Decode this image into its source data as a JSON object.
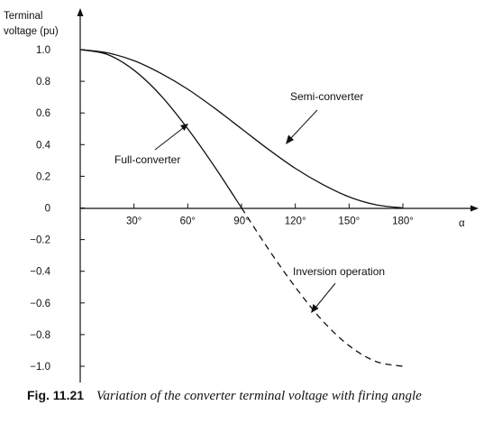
{
  "chart_data": {
    "type": "line",
    "ylabel_lines": [
      "Terminal",
      "voltage (pu)"
    ],
    "xlabel": "α",
    "xlim": [
      0,
      180
    ],
    "ylim": [
      -1.0,
      1.0
    ],
    "x_ticks": [
      30,
      60,
      90,
      120,
      150,
      180
    ],
    "x_tick_labels": [
      "30°",
      "60°",
      "90°",
      "120°",
      "150°",
      "180°"
    ],
    "y_ticks": [
      1.0,
      0.8,
      0.6,
      0.4,
      0.2,
      0,
      -0.2,
      -0.4,
      -0.6,
      -0.8,
      -1.0
    ],
    "y_tick_labels": [
      "1.0",
      "0.8",
      "0.6",
      "0.4",
      "0.2",
      "0",
      "−0.2",
      "−0.4",
      "−0.6",
      "−0.8",
      "−1.0"
    ],
    "grid": false,
    "series": [
      {
        "name": "Semi-converter",
        "style": "solid",
        "x": [
          0,
          15,
          30,
          45,
          60,
          75,
          90,
          105,
          120,
          135,
          150,
          165,
          180
        ],
        "y": [
          1.0,
          0.98,
          0.93,
          0.85,
          0.75,
          0.63,
          0.5,
          0.37,
          0.25,
          0.15,
          0.07,
          0.02,
          0.0
        ]
      },
      {
        "name": "Full-converter",
        "style": "solid",
        "x": [
          0,
          15,
          30,
          45,
          60,
          75,
          90
        ],
        "y": [
          1.0,
          0.97,
          0.87,
          0.71,
          0.5,
          0.26,
          0.0
        ]
      },
      {
        "name": "Inversion operation",
        "style": "dashed",
        "x": [
          90,
          105,
          120,
          135,
          150,
          165,
          180
        ],
        "y": [
          0.0,
          -0.26,
          -0.5,
          -0.71,
          -0.87,
          -0.97,
          -1.0
        ]
      }
    ],
    "annotations": [
      {
        "text": "Semi-converter",
        "series": "Semi-converter"
      },
      {
        "text": "Full-converter",
        "series": "Full-converter"
      },
      {
        "text": "Inversion operation",
        "series": "Inversion operation"
      }
    ],
    "caption": {
      "number": "Fig. 11.21",
      "text": "Variation of the converter terminal voltage with firing angle"
    }
  }
}
